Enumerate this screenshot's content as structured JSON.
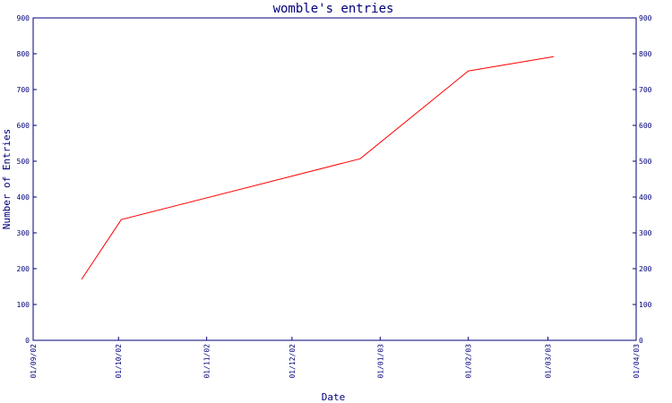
{
  "chart_data": {
    "type": "line",
    "title": "womble's entries",
    "xlabel": "Date",
    "ylabel": "Number of Entries",
    "ylim": [
      0,
      900
    ],
    "yticks": [
      0,
      100,
      200,
      300,
      400,
      500,
      600,
      700,
      800,
      900
    ],
    "xlim": [
      "2002-09-01",
      "2003-04-01"
    ],
    "xticks": [
      {
        "date": "2002-09-01",
        "label": "01/09/02"
      },
      {
        "date": "2002-10-01",
        "label": "01/10/02"
      },
      {
        "date": "2002-11-01",
        "label": "01/11/02"
      },
      {
        "date": "2002-12-01",
        "label": "01/12/02"
      },
      {
        "date": "2003-01-01",
        "label": "01/01/03"
      },
      {
        "date": "2003-02-01",
        "label": "01/02/03"
      },
      {
        "date": "2003-03-01",
        "label": "01/03/03"
      },
      {
        "date": "2003-04-01",
        "label": "01/04/03"
      }
    ],
    "grid": false,
    "series": [
      {
        "color": "#ff0000",
        "points": [
          {
            "x": "2002-09-18",
            "y": 170
          },
          {
            "x": "2002-10-02",
            "y": 337
          },
          {
            "x": "2002-12-25",
            "y": 507
          },
          {
            "x": "2003-02-01",
            "y": 752
          },
          {
            "x": "2003-03-03",
            "y": 792
          }
        ]
      }
    ],
    "axis_color": "#00007a"
  }
}
